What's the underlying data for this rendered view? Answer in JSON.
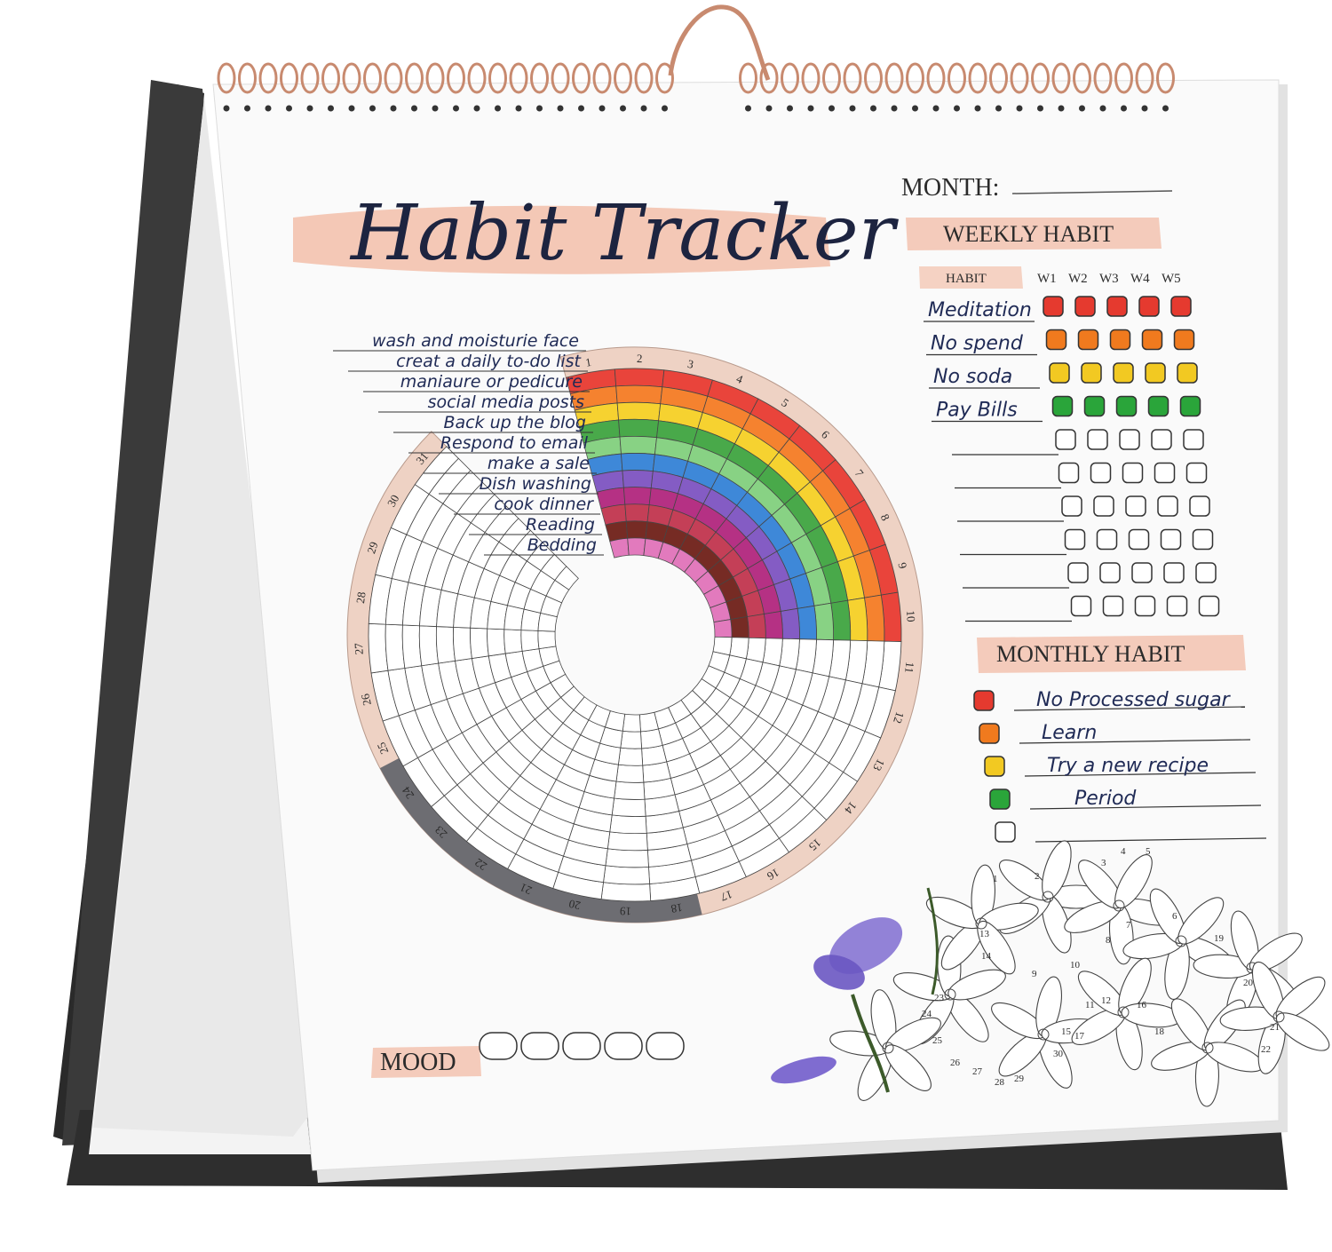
{
  "title": "Habit Tracker",
  "month_label": "MONTH:",
  "weekly": {
    "heading": "WEEKLY HABIT",
    "habit_column": "HABIT",
    "weeks": [
      "W1",
      "W2",
      "W3",
      "W4",
      "W5"
    ],
    "habits": [
      "Meditation",
      "No spend",
      "No soda",
      "Pay Bills"
    ],
    "row_colors": [
      "#e53a2f",
      "#f07a1e",
      "#f2c922",
      "#2aa53a"
    ]
  },
  "monthly": {
    "heading": "MONTHLY HABIT",
    "habits": [
      "No Processed sugar",
      "Learn",
      "Try a new recipe",
      "Period"
    ],
    "colors": [
      "#e53a2f",
      "#f07a1e",
      "#f2c922",
      "#2aa53a"
    ]
  },
  "circular_habits": [
    "wash and moisturie face",
    "creat a daily to-do list",
    "maniaure or pedicure",
    "social media posts",
    "Back up the blog",
    "Respond to email",
    "make a sale",
    "Dish washing",
    "cook dinner",
    "Reading",
    "Bedding"
  ],
  "habit_colors": [
    "#e8352b",
    "#f5781e",
    "#f6cf1f",
    "#3aa33c",
    "#7fcf7a",
    "#2f7fd6",
    "#7a4fc0",
    "#b0207a",
    "#c0304a",
    "#6b1a12",
    "#e070b8"
  ],
  "days": [
    "1",
    "2",
    "3",
    "4",
    "5",
    "6",
    "7",
    "8",
    "9",
    "10",
    "11",
    "12",
    "13",
    "14",
    "15",
    "16",
    "17",
    "18",
    "19",
    "20",
    "21",
    "22",
    "23",
    "24",
    "25",
    "26",
    "27",
    "28",
    "29",
    "30",
    "31"
  ],
  "filled_days": 10,
  "mood_label": "MOOD",
  "flower_numbers": [
    "1",
    "2",
    "3",
    "4",
    "5",
    "6",
    "7",
    "8",
    "9",
    "10",
    "11",
    "12",
    "13",
    "14",
    "15",
    "16",
    "17",
    "18",
    "19",
    "20",
    "21",
    "22",
    "23",
    "24",
    "25",
    "26",
    "27",
    "28",
    "29",
    "30"
  ],
  "colors": {
    "accent": "#e8a88e",
    "binding": "#c88a6f",
    "stand": "#2b2b2b"
  }
}
